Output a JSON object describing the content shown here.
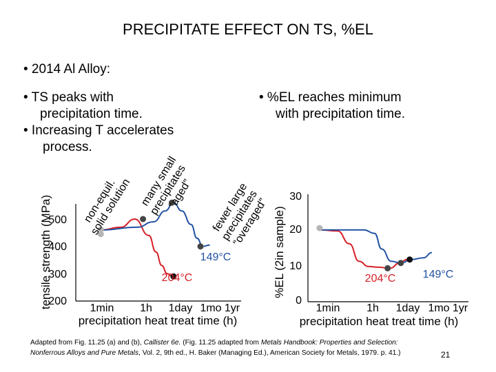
{
  "title": "PRECIPITATE EFFECT ON TS, %EL",
  "bullet_alloy": "• 2014 Al Alloy:",
  "left_bullets": {
    "line1": "• TS peaks with",
    "line2": "precipitation time.",
    "line3": "•  Increasing T accelerates",
    "line4": "process."
  },
  "right_bullets": {
    "line1": "• %EL reaches minimum",
    "line2": "with precipitation time."
  },
  "annotations": {
    "non_equil_1": "non-equil.",
    "non_equil_2": "solid solution",
    "many_small_1": "many small",
    "many_small_2": "precipitates",
    "many_small_3": "“aged”",
    "fewer_large_1": "fewer large",
    "fewer_large_2": "precipitates",
    "fewer_large_3": "“overaged”"
  },
  "chart_data": [
    {
      "type": "line",
      "title": "",
      "xlabel": "precipitation heat treat time (h)",
      "ylabel": "tensile strength (MPa)",
      "x_ticks": [
        "1min",
        "1h",
        "1day",
        "1mo",
        "1yr"
      ],
      "y_ticks": [
        200,
        300,
        400,
        500
      ],
      "ylim": [
        200,
        600
      ],
      "series": [
        {
          "name": "204°C",
          "color": "#d61f26",
          "points": [
            {
              "log_min": -0.05,
              "y": 460
            },
            {
              "log_min": 0.8,
              "y": 470
            },
            {
              "log_min": 1.4,
              "y": 500
            },
            {
              "log_min": 2.0,
              "y": 440
            },
            {
              "log_min": 2.3,
              "y": 380
            },
            {
              "log_min": 2.55,
              "y": 330
            },
            {
              "log_min": 2.78,
              "y": 300
            },
            {
              "log_min": 3.0,
              "y": 290
            },
            {
              "log_min": 3.1,
              "y": 287
            }
          ]
        },
        {
          "name": "149°C",
          "color": "#2151a3",
          "points": [
            {
              "log_min": -0.05,
              "y": 460
            },
            {
              "log_min": 1.5,
              "y": 470
            },
            {
              "log_min": 2.2,
              "y": 490
            },
            {
              "log_min": 2.7,
              "y": 530
            },
            {
              "log_min": 3.05,
              "y": 560
            },
            {
              "log_min": 3.4,
              "y": 530
            },
            {
              "log_min": 3.8,
              "y": 480
            },
            {
              "log_min": 4.05,
              "y": 430
            },
            {
              "log_min": 4.3,
              "y": 400
            },
            {
              "log_min": 4.6,
              "y": 405
            }
          ]
        }
      ],
      "series_labels": [
        "204°C",
        "149°C"
      ],
      "markers": [
        {
          "log_min": -0.05,
          "y": 445,
          "color": "#b5b5b5"
        },
        {
          "log_min": -0.05,
          "y": 462,
          "color": "#b5b5b5"
        },
        {
          "log_min": 1.75,
          "y": 500,
          "color": "#444444"
        },
        {
          "log_min": 2.98,
          "y": 560,
          "color": "#444444"
        },
        {
          "log_min": 3.05,
          "y": 290,
          "color": "#111111"
        },
        {
          "log_min": 4.2,
          "y": 400,
          "color": "#444444"
        }
      ]
    },
    {
      "type": "line",
      "title": "",
      "xlabel": "precipitation heat treat time (h)",
      "ylabel": "%EL (2in sample)",
      "x_ticks": [
        "1min",
        "1h",
        "1day",
        "1mo",
        "1yr"
      ],
      "y_ticks": [
        0,
        10,
        20,
        30
      ],
      "ylim": [
        0,
        30
      ],
      "series": [
        {
          "name": "204°C",
          "color": "#d61f26",
          "points": [
            {
              "log_min": -0.35,
              "y": 20
            },
            {
              "log_min": 0.4,
              "y": 19.7
            },
            {
              "log_min": 0.9,
              "y": 16
            },
            {
              "log_min": 1.3,
              "y": 11
            },
            {
              "log_min": 1.7,
              "y": 9.5
            },
            {
              "log_min": 2.1,
              "y": 9.3
            },
            {
              "log_min": 2.6,
              "y": 9.0
            },
            {
              "log_min": 3.0,
              "y": 10.5
            },
            {
              "log_min": 3.3,
              "y": 11.5
            },
            {
              "log_min": 3.42,
              "y": 11.5
            }
          ]
        },
        {
          "name": "149°C",
          "color": "#2151a3",
          "points": [
            {
              "log_min": -0.35,
              "y": 20
            },
            {
              "log_min": 1.5,
              "y": 20
            },
            {
              "log_min": 1.95,
              "y": 19
            },
            {
              "log_min": 2.25,
              "y": 14.5
            },
            {
              "log_min": 2.65,
              "y": 11
            },
            {
              "log_min": 3.05,
              "y": 10.5
            },
            {
              "log_min": 3.5,
              "y": 11.5
            },
            {
              "log_min": 4.0,
              "y": 12.0
            },
            {
              "log_min": 4.35,
              "y": 13.5
            }
          ]
        }
      ],
      "series_labels": [
        "204°C",
        "149°C"
      ],
      "markers": [
        {
          "log_min": -0.35,
          "y": 20.5,
          "color": "#b5b5b5"
        },
        {
          "log_min": 2.5,
          "y": 9.0,
          "color": "#444444"
        },
        {
          "log_min": 3.05,
          "y": 10.5,
          "color": "#444444"
        },
        {
          "log_min": 3.42,
          "y": 11.5,
          "color": "#111111"
        }
      ]
    }
  ],
  "caption": {
    "part1": "Adapted from Fig. 11.25 (a) and (b), ",
    "author": "Callister 6e.",
    "part2": " (Fig. 11.25 adapted from ",
    "book": "Metals Handbook: Properties and Selection:  Nonferrous Alloys and Pure Metals",
    "part3": ", Vol. 2, 9th ed., H. Baker (Managing Ed.), American Society for Metals, 1979. p. 41.)"
  },
  "page_number": "21"
}
